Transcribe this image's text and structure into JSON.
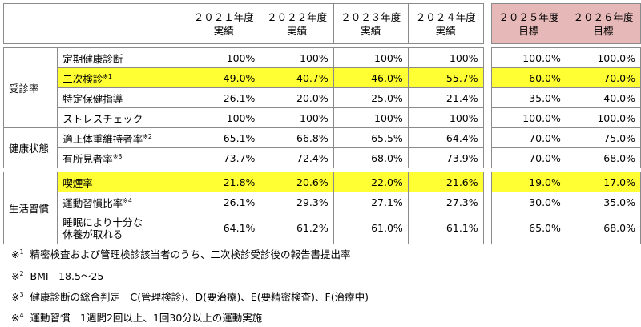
{
  "headers": {
    "y2021": [
      "２０２１年度",
      "実績"
    ],
    "y2022": [
      "２０２２年度",
      "実績"
    ],
    "y2023": [
      "２０２３年度",
      "実績"
    ],
    "y2024": [
      "２０２４年度",
      "実績"
    ],
    "y2025": [
      "２０２５年度",
      "目標"
    ],
    "y2026": [
      "２０２６年度",
      "目標"
    ]
  },
  "categories": {
    "jushin": "受診率",
    "kenko": "健康状態",
    "seikatsu": "生活習慣"
  },
  "rows": [
    {
      "label": "定期健康診断",
      "sup": "",
      "values": [
        "100%",
        "100%",
        "100%",
        "100%",
        "100.0%",
        "100.0%"
      ]
    },
    {
      "label": "二次検診",
      "sup": "※1",
      "values": [
        "49.0%",
        "40.7%",
        "46.0%",
        "55.7%",
        "60.0%",
        "70.0%"
      ]
    },
    {
      "label": "特定保健指導",
      "sup": "",
      "values": [
        "26.1%",
        "20.0%",
        "25.0%",
        "21.4%",
        "35.0%",
        "40.0%"
      ]
    },
    {
      "label": "ストレスチェック",
      "sup": "",
      "values": [
        "100%",
        "100%",
        "100%",
        "100%",
        "100.0%",
        "100.0%"
      ]
    },
    {
      "label": "適正体重維持者率",
      "sup": "※2",
      "values": [
        "65.1%",
        "66.8%",
        "65.5%",
        "64.4%",
        "70.0%",
        "75.0%"
      ]
    },
    {
      "label": "有所見者率",
      "sup": "※3",
      "values": [
        "73.7%",
        "72.4%",
        "68.0%",
        "73.9%",
        "70.0%",
        "68.0%"
      ]
    },
    {
      "label": "喫煙率",
      "sup": "",
      "values": [
        "21.8%",
        "20.6%",
        "22.0%",
        "21.6%",
        "19.0%",
        "17.0%"
      ]
    },
    {
      "label": "運動習慣比率",
      "sup": "※4",
      "values": [
        "26.1%",
        "29.3%",
        "27.1%",
        "27.3%",
        "30.0%",
        "35.0%"
      ]
    },
    {
      "label_line1": "睡眠により十分な",
      "label_line2": "休養が取れる",
      "values": [
        "64.1%",
        "61.2%",
        "61.0%",
        "61.1%",
        "65.0%",
        "68.0%"
      ]
    }
  ],
  "footnotes": [
    {
      "mark": "※",
      "num": "1",
      "text": "精密検査および管理検診該当者のうち、二次検診受診後の報告書提出率"
    },
    {
      "mark": "※",
      "num": "2",
      "text": "BMI　18.5～25"
    },
    {
      "mark": "※",
      "num": "3",
      "text": "健康診断の総合判定　C(管理検診)、D(要治療)、E(要精密検査)、F(治療中)"
    },
    {
      "mark": "※",
      "num": "4",
      "text": "運動習慣　1週間2回以上、1回30分以上の運動実施"
    }
  ],
  "colors": {
    "highlight": "#ffff33",
    "target_header": "#e6b8b7"
  }
}
